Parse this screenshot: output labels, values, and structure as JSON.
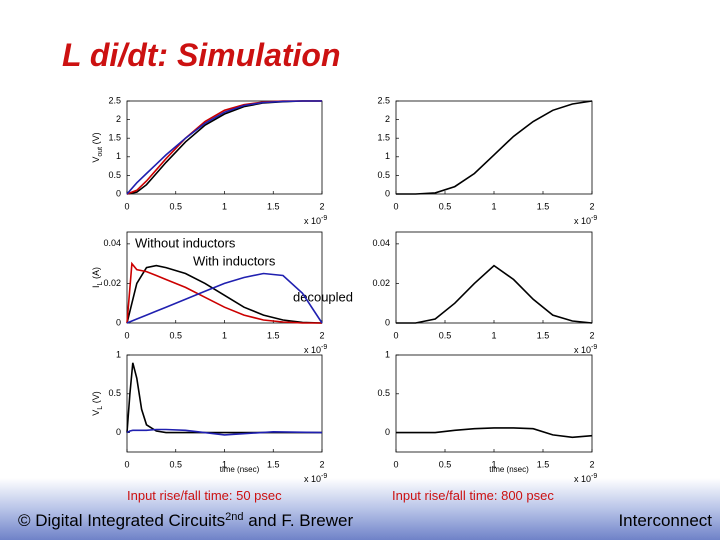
{
  "slide": {
    "title": "L di/dt: Simulation",
    "footer_left": "© Digital Integrated Circuits",
    "footer_sup": "2nd",
    "footer_right_part": " and F. Brewer",
    "footer_topic": "Interconnect",
    "caption_left": "Input rise/fall time: 50 psec",
    "caption_right": "Input rise/fall time: 800 psec"
  },
  "chart_data": [
    {
      "type": "line",
      "ylabel": "V",
      "ylabel_sub": "out",
      "ylabel_unit": "(V)",
      "x_scale": "x 10",
      "x_scale_exp": "-9",
      "x": [
        0,
        0.1,
        0.2,
        0.3,
        0.4,
        0.6,
        0.8,
        1.0,
        1.2,
        1.4,
        1.6,
        1.8,
        2.0
      ],
      "series": [
        {
          "color": "#000000",
          "values": [
            0,
            0.05,
            0.25,
            0.55,
            0.85,
            1.4,
            1.85,
            2.15,
            2.35,
            2.45,
            2.48,
            2.5,
            2.5
          ]
        },
        {
          "color": "#cc0000",
          "values": [
            0,
            0.1,
            0.35,
            0.65,
            0.95,
            1.5,
            1.95,
            2.25,
            2.4,
            2.47,
            2.5,
            2.5,
            2.5
          ]
        },
        {
          "color": "#2020b0",
          "values": [
            0,
            0.3,
            0.55,
            0.8,
            1.05,
            1.5,
            1.9,
            2.2,
            2.38,
            2.46,
            2.49,
            2.5,
            2.5
          ]
        }
      ],
      "xlim": [
        0,
        2
      ],
      "xticks": [
        0,
        0.5,
        1,
        1.5,
        2
      ],
      "ylim": [
        0,
        2.5
      ],
      "yticks": [
        0,
        0.5,
        1,
        1.5,
        2,
        2.5
      ]
    },
    {
      "type": "line",
      "x_scale": "x 10",
      "x_scale_exp": "-9",
      "x": [
        0,
        0.2,
        0.4,
        0.6,
        0.8,
        1.0,
        1.2,
        1.4,
        1.6,
        1.8,
        2.0
      ],
      "series": [
        {
          "color": "#000000",
          "values": [
            0,
            0,
            0.03,
            0.2,
            0.55,
            1.05,
            1.55,
            1.95,
            2.25,
            2.42,
            2.5
          ]
        }
      ],
      "xlim": [
        0,
        2
      ],
      "xticks": [
        0,
        0.5,
        1,
        1.5,
        2
      ],
      "ylim": [
        0,
        2.5
      ],
      "yticks": [
        0,
        0.5,
        1,
        1.5,
        2,
        2.5
      ]
    },
    {
      "type": "line",
      "ylabel": "I",
      "ylabel_sub": "L",
      "ylabel_unit": "(A)",
      "x_scale": "x 10",
      "x_scale_exp": "-9",
      "annotations": [
        "Without inductors",
        "With inductors",
        "decoupled"
      ],
      "x": [
        0,
        0.05,
        0.1,
        0.2,
        0.3,
        0.4,
        0.6,
        0.8,
        1.0,
        1.2,
        1.4,
        1.6,
        1.8,
        2.0
      ],
      "series": [
        {
          "color": "#000000",
          "values": [
            0,
            0.01,
            0.02,
            0.028,
            0.029,
            0.028,
            0.025,
            0.02,
            0.014,
            0.008,
            0.004,
            0.0015,
            0.0003,
            0
          ]
        },
        {
          "color": "#cc0000",
          "values": [
            0,
            0.03,
            0.027,
            0.026,
            0.024,
            0.022,
            0.018,
            0.013,
            0.008,
            0.004,
            0.0015,
            0.0005,
            0,
            0
          ]
        },
        {
          "color": "#2020b0",
          "values": [
            0,
            0.001,
            0.002,
            0.004,
            0.006,
            0.008,
            0.012,
            0.016,
            0.02,
            0.023,
            0.025,
            0.024,
            0.015,
            0
          ]
        }
      ],
      "xlim": [
        0,
        2
      ],
      "xticks": [
        0,
        0.5,
        1,
        1.5,
        2
      ],
      "ylim": [
        0,
        0.046
      ],
      "yticks": [
        0,
        0.02,
        0.04
      ]
    },
    {
      "type": "line",
      "x_scale": "x 10",
      "x_scale_exp": "-9",
      "x": [
        0,
        0.2,
        0.4,
        0.6,
        0.8,
        1.0,
        1.2,
        1.4,
        1.6,
        1.8,
        2.0
      ],
      "series": [
        {
          "color": "#000000",
          "values": [
            0,
            0,
            0.002,
            0.01,
            0.02,
            0.029,
            0.022,
            0.012,
            0.004,
            0.001,
            0
          ]
        }
      ],
      "xlim": [
        0,
        2
      ],
      "xticks": [
        0,
        0.5,
        1,
        1.5,
        2
      ],
      "ylim": [
        0,
        0.046
      ],
      "yticks": [
        0,
        0.02,
        0.04
      ]
    },
    {
      "type": "line",
      "ylabel": "V",
      "ylabel_sub": "L",
      "ylabel_unit": "(V)",
      "xlabel": "time (nsec)",
      "x_scale": "x 10",
      "x_scale_exp": "-9",
      "x": [
        0,
        0.03,
        0.06,
        0.1,
        0.15,
        0.2,
        0.3,
        0.4,
        0.6,
        1.0,
        1.5,
        2.0
      ],
      "series": [
        {
          "color": "#000000",
          "values": [
            0,
            0.5,
            0.9,
            0.7,
            0.3,
            0.1,
            0.02,
            0,
            0,
            0,
            0,
            0
          ]
        },
        {
          "color": "#2020b0",
          "values": [
            0,
            0.02,
            0.03,
            0.03,
            0.03,
            0.03,
            0.04,
            0.04,
            0.03,
            -0.03,
            0.01,
            0
          ]
        }
      ],
      "xlim": [
        0,
        2
      ],
      "xticks": [
        0,
        0.5,
        1,
        1.5,
        2
      ],
      "ylim": [
        -0.25,
        1
      ],
      "yticks": [
        0,
        0.5,
        1
      ]
    },
    {
      "type": "line",
      "xlabel": "time (nsec)",
      "x_scale": "x 10",
      "x_scale_exp": "-9",
      "x": [
        0,
        0.2,
        0.4,
        0.6,
        0.8,
        1.0,
        1.2,
        1.4,
        1.6,
        1.8,
        2.0
      ],
      "series": [
        {
          "color": "#000000",
          "values": [
            0,
            0,
            0,
            0.03,
            0.05,
            0.06,
            0.06,
            0.05,
            -0.03,
            -0.06,
            -0.04
          ]
        }
      ],
      "xlim": [
        0,
        2
      ],
      "xticks": [
        0,
        0.5,
        1,
        1.5,
        2
      ],
      "ylim": [
        -0.25,
        1
      ],
      "yticks": [
        0,
        0.5,
        1
      ]
    }
  ]
}
